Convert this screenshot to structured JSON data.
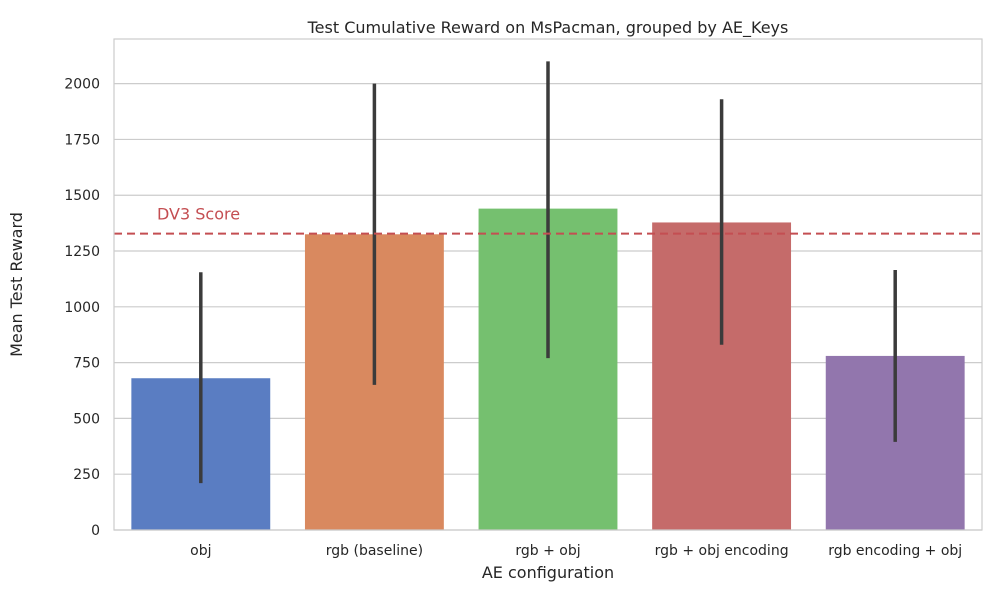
{
  "chart_data": {
    "type": "bar",
    "title": "Test Cumulative Reward on MsPacman, grouped by AE_Keys",
    "xlabel": "AE configuration",
    "ylabel": "Mean Test Reward",
    "categories": [
      "obj",
      "rgb (baseline)",
      "rgb + obj",
      "rgb + obj encoding",
      "rgb encoding + obj"
    ],
    "values": [
      680,
      1325,
      1440,
      1378,
      780
    ],
    "error_low": [
      210,
      650,
      770,
      830,
      395
    ],
    "error_high": [
      1155,
      2000,
      2100,
      1930,
      1165
    ],
    "ylim": [
      0,
      2200
    ],
    "yticks": [
      0,
      250,
      500,
      750,
      1000,
      1250,
      1500,
      1750,
      2000
    ],
    "bar_colors": [
      "#5a7dc2",
      "#d9895f",
      "#75c06f",
      "#c56b6a",
      "#9276ad"
    ],
    "error_color": "#3b3b3b",
    "grid": true,
    "reference_line": {
      "value": 1328,
      "label": "DV3 Score",
      "color": "#c44e52",
      "style": "dashed"
    }
  }
}
